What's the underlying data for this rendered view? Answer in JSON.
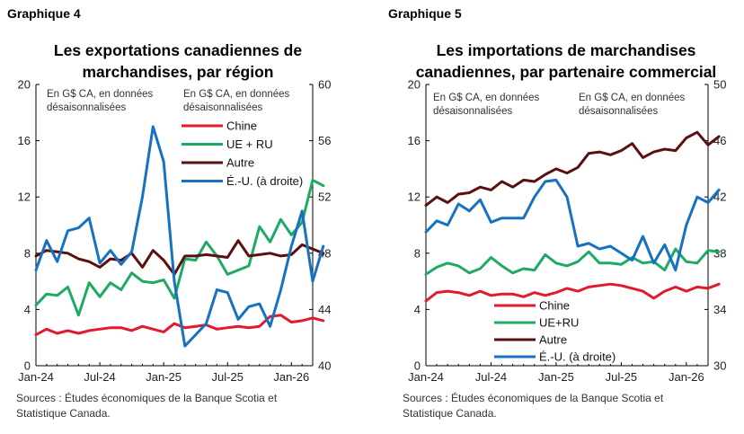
{
  "chart_data": [
    {
      "type": "line",
      "graph_number": "Graphique 4",
      "title_lines": [
        "Les exportations canadiennes de",
        "marchandises, par région"
      ],
      "unit_left": [
        "En G$ CA, en données",
        "désaisonnalisées"
      ],
      "unit_right": [
        "En G$ CA, en données",
        "désaisonnalisées"
      ],
      "x_tick_labels": [
        "Jan-24",
        "Jul-24",
        "Jan-25",
        "Jul-25",
        "Jan-26"
      ],
      "y_left_ticks": [
        "0",
        "4",
        "8",
        "12",
        "16",
        "20"
      ],
      "y_right_ticks": [
        "40",
        "44",
        "48",
        "52",
        "56",
        "60"
      ],
      "y_left_range": [
        0,
        20
      ],
      "y_right_range": [
        40,
        60
      ],
      "x_range": [
        0,
        26
      ],
      "legend_position": "upper-right",
      "grid": false,
      "series": [
        {
          "name": "Chine",
          "color": "#e3192d",
          "axis": "left",
          "values": [
            2.2,
            2.6,
            2.3,
            2.5,
            2.3,
            2.5,
            2.6,
            2.7,
            2.7,
            2.5,
            2.8,
            2.6,
            2.4,
            3.0,
            2.7,
            2.8,
            2.9,
            2.6,
            2.7,
            2.8,
            2.7,
            2.8,
            3.5,
            3.6,
            3.1,
            3.2,
            3.4,
            3.2
          ]
        },
        {
          "name": "UE + RU",
          "color": "#1dab63",
          "axis": "left",
          "values": [
            4.3,
            5.1,
            5.0,
            5.6,
            3.6,
            5.9,
            4.9,
            5.9,
            5.4,
            6.6,
            6.0,
            5.9,
            6.1,
            4.8,
            7.6,
            7.5,
            8.8,
            7.8,
            6.5,
            6.8,
            7.1,
            9.9,
            8.8,
            10.4,
            9.3,
            10.2,
            13.2,
            12.8
          ]
        },
        {
          "name": "Autre",
          "color": "#5c0f0f",
          "axis": "left",
          "values": [
            7.8,
            8.2,
            8.1,
            8.0,
            7.6,
            7.4,
            7.0,
            7.6,
            7.5,
            8.0,
            7.0,
            8.2,
            7.5,
            6.5,
            7.8,
            7.8,
            7.9,
            7.8,
            7.7,
            8.9,
            7.8,
            7.9,
            8.0,
            7.8,
            7.9,
            8.6,
            8.3,
            8.0
          ]
        },
        {
          "name": "É.-U. (à droite)",
          "color": "#1671c2",
          "axis": "right",
          "values": [
            46.8,
            48.9,
            47.4,
            49.6,
            49.8,
            50.5,
            47.3,
            48.2,
            47.2,
            48.1,
            52.0,
            57.0,
            54.5,
            46.0,
            41.4,
            42.2,
            43.0,
            45.4,
            45.2,
            43.3,
            44.2,
            44.4,
            42.8,
            45.4,
            48.5,
            51.0,
            46.0,
            48.5
          ]
        }
      ]
    },
    {
      "type": "line",
      "graph_number": "Graphique 5",
      "title_lines": [
        "Les importations de marchandises",
        "canadiennes, par partenaire commercial"
      ],
      "unit_left": [
        "En G$ CA, en données",
        "désaisonnalisées"
      ],
      "unit_right": [
        "En G$ CA, en données",
        "désaisonnalisées"
      ],
      "x_tick_labels": [
        "Jan-24",
        "Jul-24",
        "Jan-25",
        "Jul-25",
        "Jan-26"
      ],
      "y_left_ticks": [
        "0",
        "4",
        "8",
        "12",
        "16",
        "20"
      ],
      "y_right_ticks": [
        "30",
        "34",
        "38",
        "42",
        "46",
        "50"
      ],
      "y_left_range": [
        0,
        20
      ],
      "y_right_range": [
        30,
        50
      ],
      "x_range": [
        0,
        26
      ],
      "legend_position": "lower-left",
      "grid": false,
      "series": [
        {
          "name": "Chine",
          "color": "#e3192d",
          "axis": "left",
          "values": [
            4.6,
            5.2,
            5.3,
            5.2,
            5.0,
            5.3,
            5.0,
            5.1,
            5.1,
            4.9,
            5.2,
            5.0,
            5.2,
            5.5,
            5.3,
            5.6,
            5.7,
            5.8,
            5.7,
            5.5,
            5.3,
            4.8,
            5.3,
            5.6,
            5.3,
            5.6,
            5.5,
            5.8
          ]
        },
        {
          "name": "UE+RU",
          "color": "#1dab63",
          "axis": "left",
          "values": [
            6.5,
            7.0,
            7.3,
            7.1,
            6.6,
            6.9,
            7.7,
            7.1,
            6.6,
            6.9,
            6.8,
            7.9,
            7.3,
            7.1,
            7.4,
            8.1,
            7.3,
            7.3,
            7.2,
            7.7,
            7.3,
            7.4,
            6.8,
            8.3,
            7.4,
            7.3,
            8.2,
            8.1
          ]
        },
        {
          "name": "Autre",
          "color": "#5c0f0f",
          "axis": "left",
          "values": [
            11.4,
            12.0,
            11.6,
            12.2,
            12.3,
            12.7,
            12.5,
            13.1,
            12.7,
            13.2,
            13.1,
            13.6,
            14.0,
            13.7,
            14.1,
            15.1,
            15.2,
            15.0,
            15.3,
            15.8,
            14.8,
            15.2,
            15.4,
            15.3,
            16.2,
            16.6,
            15.7,
            16.3
          ]
        },
        {
          "name": "É.-U. (à droite)",
          "color": "#1671c2",
          "axis": "right",
          "values": [
            39.5,
            40.3,
            40.0,
            41.5,
            41.0,
            41.8,
            40.2,
            40.5,
            40.5,
            40.5,
            42.0,
            43.1,
            43.2,
            42.0,
            38.5,
            38.7,
            38.3,
            38.5,
            38.0,
            37.5,
            39.2,
            37.3,
            38.6,
            36.8,
            40.0,
            42.0,
            41.6,
            42.5
          ]
        }
      ]
    }
  ],
  "sources": [
    [
      "Sources : Études économiques de la Banque Scotia et",
      "Statistique Canada."
    ],
    [
      "Sources : Études économiques de la Banque Scotia et",
      "Statistique Canada."
    ]
  ]
}
